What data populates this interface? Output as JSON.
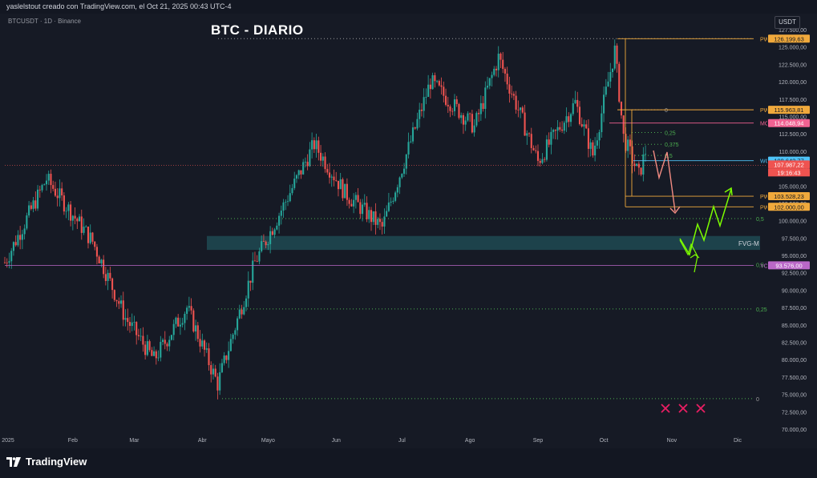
{
  "header": {
    "credit": "yaslelstout creado con TradingView.com, el Oct 21, 2025 00:43 UTC-4",
    "symbol": "BTCUSDT · 1D · Binance",
    "title": "BTC - DIARIO",
    "currency": "USDT"
  },
  "footer": {
    "logo_text": "TradingView"
  },
  "colors": {
    "background": "#161a25",
    "up": "#26a69a",
    "down": "#ef5350",
    "level_orange": "#f0a93c",
    "mo": "#f06292",
    "wo": "#4fc3f7",
    "yo": "#ba68c8",
    "fvg": "#1e4a52",
    "fib": "#4caf50",
    "arrow_green": "#7cfc00",
    "arrow_red": "#f28b82",
    "x_red": "#e91e63"
  },
  "chart_data": {
    "type": "candlestick",
    "title": "BTC - DIARIO",
    "xlabel": "",
    "ylabel": "",
    "y_range": [
      70000,
      127500
    ],
    "y_ticks": [
      "127.500,00",
      "125.000,00",
      "122.500,00",
      "120.000,00",
      "117.500,00",
      "115.000,00",
      "112.500,00",
      "110.000,00",
      "107.500,00",
      "105.000,00",
      "102.500,00",
      "100.000,00",
      "97.500,00",
      "95.000,00",
      "92.500,00",
      "90.000,00",
      "87.500,00",
      "85.000,00",
      "82.500,00",
      "80.000,00",
      "77.500,00",
      "75.000,00",
      "72.500,00",
      "70.000,00"
    ],
    "x_labels": [
      "2025",
      "Feb",
      "Mar",
      "Abr",
      "Mayo",
      "Jun",
      "Jul",
      "Ago",
      "Sep",
      "Oct",
      "Nov",
      "Dic"
    ],
    "price_path": [
      {
        "date": "2025-01-01",
        "close": 94000
      },
      {
        "date": "2025-01-20",
        "close": 106000
      },
      {
        "date": "2025-02-10",
        "close": 97000
      },
      {
        "date": "2025-02-25",
        "close": 86000
      },
      {
        "date": "2025-03-10",
        "close": 80000
      },
      {
        "date": "2025-03-25",
        "close": 87500
      },
      {
        "date": "2025-04-08",
        "close": 76500
      },
      {
        "date": "2025-04-25",
        "close": 94000
      },
      {
        "date": "2025-05-22",
        "close": 111000
      },
      {
        "date": "2025-06-05",
        "close": 104000
      },
      {
        "date": "2025-06-22",
        "close": 99000
      },
      {
        "date": "2025-07-14",
        "close": 120000
      },
      {
        "date": "2025-08-03",
        "close": 113500
      },
      {
        "date": "2025-08-14",
        "close": 123500
      },
      {
        "date": "2025-09-01",
        "close": 108500
      },
      {
        "date": "2025-09-18",
        "close": 117000
      },
      {
        "date": "2025-09-26",
        "close": 109500
      },
      {
        "date": "2025-10-06",
        "close": 124500
      },
      {
        "date": "2025-10-10",
        "close": 112000
      },
      {
        "date": "2025-10-17",
        "close": 106500
      },
      {
        "date": "2025-10-20",
        "close": 110000
      }
    ],
    "levels": [
      {
        "name": "PWH",
        "value": 126199.63,
        "tag": "126.199,63",
        "kind": "pwh"
      },
      {
        "name": "PWH",
        "value": 115963.81,
        "tag": "115.963,81",
        "kind": "pwh"
      },
      {
        "name": "MO",
        "value": 114048.94,
        "tag": "114.048,94",
        "kind": "mo"
      },
      {
        "name": "WO",
        "value": 108642.77,
        "tag": "108.642,77",
        "kind": "wo"
      },
      {
        "name": "",
        "value": 107987.22,
        "tag": "107.987,22",
        "kind": "last"
      },
      {
        "name": "PWL",
        "value": 103528.23,
        "tag": "103.528,23",
        "kind": "pwl"
      },
      {
        "name": "PWL",
        "value": 102000.0,
        "tag": "102.000,00",
        "kind": "pwl"
      },
      {
        "name": "YO",
        "value": 93576.0,
        "tag": "93.576,00",
        "kind": "yo"
      }
    ],
    "countdown": "19:16:43",
    "fib_levels": [
      {
        "label": "0",
        "value": 126199.63
      },
      {
        "label": "0,5",
        "value": 100300
      },
      {
        "label": "0,25",
        "value": 87300
      },
      {
        "label": "0",
        "value": 74400
      }
    ],
    "fib_small": [
      {
        "label": "0",
        "value": 115963.81
      },
      {
        "label": "0,25",
        "value": 112700
      },
      {
        "label": "0,375",
        "value": 111000
      },
      {
        "label": "0,5",
        "value": 109400
      }
    ],
    "fvg": {
      "label": "FVG-M",
      "top": 97800,
      "bottom": 95800
    },
    "extra_labels": [
      {
        "label": "0,5",
        "value": 93576.0
      }
    ]
  }
}
